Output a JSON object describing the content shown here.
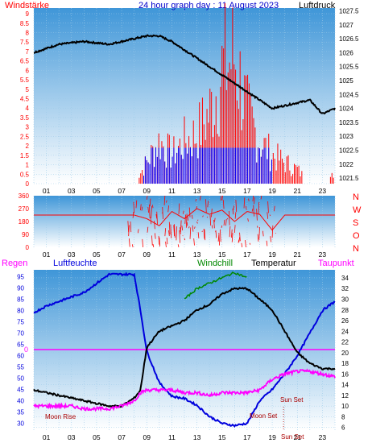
{
  "header": {
    "left": "Windstärke",
    "center": "24 hour graph day : 11 August 2023",
    "right": "Luftdruck"
  },
  "colors": {
    "wind": "#ff0000",
    "gust_low": "#0000ff",
    "pressure": "#000000",
    "humidity": "#0000dd",
    "windchill": "#008800",
    "temperature": "#000000",
    "dewpoint": "#ff00ff",
    "rain": "#ff00ff",
    "sky_top": "#3f96d8",
    "sky_bottom": "#ffffff"
  },
  "hour_ticks": [
    "01",
    "03",
    "05",
    "07",
    "09",
    "11",
    "13",
    "15",
    "17",
    "19",
    "21",
    "23"
  ],
  "panel_wind": {
    "left_ticks": [
      "9",
      "8.5",
      "8",
      "7.5",
      "7",
      "6.5",
      "6",
      "5.5",
      "5",
      "4.5",
      "4",
      "3.5",
      "3",
      "2.5",
      "2",
      "1.5",
      "1",
      "0.5",
      "0"
    ],
    "right_ticks": [
      "1027.5",
      "1027",
      "1026.5",
      "1026",
      "1025.5",
      "1025",
      "1024.5",
      "1024",
      "1023.5",
      "1023",
      "1022.5",
      "1022",
      "1021.5"
    ]
  },
  "panel_dir": {
    "left_ticks": [
      "360",
      "270",
      "180",
      "90",
      "0"
    ],
    "right_letters": [
      "N",
      "W",
      "S",
      "O",
      "N"
    ]
  },
  "panel_temp": {
    "labels": {
      "regen": "Regen",
      "luftfeuchte": "Luftfeuchte",
      "windchill": "Windchill",
      "temperatur": "Temperatur",
      "taupunkt": "Taupunkt"
    },
    "left_ticks": [
      "95",
      "90",
      "85",
      "80",
      "75",
      "70",
      "65",
      "60",
      "55",
      "50",
      "45",
      "40",
      "35",
      "30"
    ],
    "right_ticks": [
      "34",
      "32",
      "30",
      "28",
      "26",
      "24",
      "22",
      "20",
      "18",
      "16",
      "14",
      "12",
      "10",
      "8",
      "6"
    ],
    "rain_value": "0",
    "moon_rise": "Moon Rise",
    "moon_set": "Moon Set",
    "sun_set": "Sun Set",
    "sun_set_axis": "Sun Set"
  },
  "chart_data": [
    {
      "type": "line",
      "title": "24 hour graph day : 11 August 2023",
      "ylabel": "Windstärke",
      "y2label": "Luftdruck",
      "x_hours": [
        0,
        2,
        4,
        6,
        8,
        9,
        10,
        11,
        12,
        13,
        14,
        15,
        16,
        17,
        18,
        19,
        20,
        21,
        22,
        23,
        24
      ],
      "series": [
        {
          "name": "Luftdruck",
          "axis": "right",
          "ylim": [
            1021.3,
            1027.6
          ],
          "values": [
            1026,
            1026.3,
            1026.4,
            1026.3,
            1026.5,
            1026.6,
            1026.6,
            1026.4,
            1026.1,
            1025.8,
            1025.5,
            1025.2,
            1024.9,
            1024.6,
            1024.3,
            1024,
            1024.1,
            1024.2,
            1024.3,
            1023.8,
            1024
          ]
        },
        {
          "name": "Windstärke",
          "axis": "left",
          "ylim": [
            0,
            9.3
          ],
          "values": [
            0,
            0,
            0,
            0,
            0,
            1.5,
            3,
            2,
            3,
            3.5,
            5,
            8,
            9,
            5,
            3,
            2,
            1.5,
            1,
            0,
            0,
            1
          ]
        }
      ]
    },
    {
      "type": "line",
      "title": "",
      "ylim": [
        0,
        360
      ],
      "x_hours": [
        0,
        7.5,
        8,
        9,
        10,
        11,
        12,
        13,
        14,
        15,
        16,
        17,
        18,
        19,
        20,
        21,
        22,
        23,
        24
      ],
      "series": [
        {
          "name": "",
          "values": [
            225,
            225,
            225,
            200,
            150,
            250,
            200,
            270,
            230,
            260,
            180,
            250,
            230,
            120,
            225,
            225,
            225,
            225,
            225
          ]
        }
      ]
    },
    {
      "type": "line",
      "title": "",
      "x_hours": [
        0,
        1,
        2,
        3,
        4,
        5,
        6,
        7,
        8,
        8.5,
        9,
        10,
        11,
        12,
        13,
        14,
        15,
        16,
        17,
        18,
        19,
        20,
        21,
        22,
        23,
        24
      ],
      "series": [
        {
          "name": "Luftfeuchte",
          "axis": "left",
          "ylim": [
            27,
            98
          ],
          "values": [
            79,
            82,
            84,
            86,
            88,
            92,
            96,
            96,
            96,
            80,
            62,
            48,
            42,
            41,
            38,
            33,
            30,
            29,
            30,
            40,
            45,
            52,
            60,
            70,
            80,
            84
          ]
        },
        {
          "name": "Temperatur",
          "axis": "right",
          "ylim": [
            5.5,
            35.5
          ],
          "values": [
            13,
            12.5,
            12,
            11.5,
            11,
            10.5,
            10,
            10,
            11.5,
            13,
            21,
            24,
            25,
            26,
            28,
            29,
            31,
            32,
            32,
            30,
            28,
            24,
            20,
            18,
            17,
            17
          ]
        },
        {
          "name": "Windchill",
          "axis": "right",
          "ylim": [
            5.5,
            35.5
          ],
          "values": [
            null,
            null,
            null,
            null,
            null,
            null,
            null,
            null,
            null,
            null,
            null,
            null,
            null,
            30,
            32,
            33,
            34,
            35,
            34,
            null,
            null,
            null,
            null,
            null,
            null,
            null
          ]
        },
        {
          "name": "Taupunkt",
          "axis": "right",
          "ylim": [
            5.5,
            35.5
          ],
          "values": [
            10,
            10,
            10,
            10,
            9.5,
            9.5,
            9.5,
            10,
            11,
            12.5,
            13,
            13,
            13,
            12.5,
            12.5,
            12,
            12.5,
            12.5,
            12.5,
            13,
            15,
            16,
            16.5,
            16.5,
            16,
            15.5
          ]
        },
        {
          "name": "Regen",
          "axis": "left",
          "values": [
            0
          ]
        }
      ]
    }
  ]
}
